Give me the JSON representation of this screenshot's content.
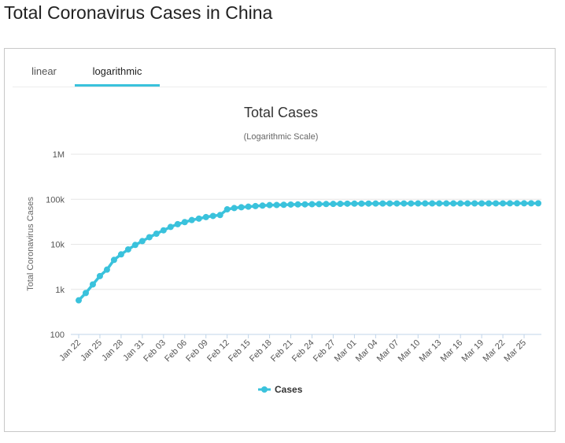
{
  "page": {
    "title": "Total Coronavirus Cases in China"
  },
  "tabs": [
    {
      "label": "linear",
      "active": false
    },
    {
      "label": "logarithmic",
      "active": true
    }
  ],
  "colors": {
    "series": "#3ac2dc",
    "grid": "#e6e6e6",
    "axis": "#c0d4e8",
    "tab_active": "#3ac2dc"
  },
  "chart_data": {
    "type": "line",
    "title": "Total Cases",
    "subtitle": "(Logarithmic Scale)",
    "ylabel": "Total Coronavirus Cases",
    "yscale": "log",
    "ylim": [
      100,
      1000000
    ],
    "ytick_values": [
      100,
      1000,
      10000,
      100000,
      1000000
    ],
    "ytick_labels": [
      "100",
      "1k",
      "10k",
      "100k",
      "1M"
    ],
    "x_tick_labels": [
      "Jan 22",
      "Jan 25",
      "Jan 28",
      "Jan 31",
      "Feb 03",
      "Feb 06",
      "Feb 09",
      "Feb 12",
      "Feb 15",
      "Feb 18",
      "Feb 21",
      "Feb 24",
      "Feb 27",
      "Mar 01",
      "Mar 04",
      "Mar 07",
      "Mar 10",
      "Mar 13",
      "Mar 16",
      "Mar 19",
      "Mar 22",
      "Mar 25"
    ],
    "legend": "bottom-center",
    "grid": true,
    "series": [
      {
        "name": "Cases",
        "x": [
          "Jan 22",
          "Jan 23",
          "Jan 24",
          "Jan 25",
          "Jan 26",
          "Jan 27",
          "Jan 28",
          "Jan 29",
          "Jan 30",
          "Jan 31",
          "Feb 01",
          "Feb 02",
          "Feb 03",
          "Feb 04",
          "Feb 05",
          "Feb 06",
          "Feb 07",
          "Feb 08",
          "Feb 09",
          "Feb 10",
          "Feb 11",
          "Feb 12",
          "Feb 13",
          "Feb 14",
          "Feb 15",
          "Feb 16",
          "Feb 17",
          "Feb 18",
          "Feb 19",
          "Feb 20",
          "Feb 21",
          "Feb 22",
          "Feb 23",
          "Feb 24",
          "Feb 25",
          "Feb 26",
          "Feb 27",
          "Feb 28",
          "Feb 29",
          "Mar 01",
          "Mar 02",
          "Mar 03",
          "Mar 04",
          "Mar 05",
          "Mar 06",
          "Mar 07",
          "Mar 08",
          "Mar 09",
          "Mar 10",
          "Mar 11",
          "Mar 12",
          "Mar 13",
          "Mar 14",
          "Mar 15",
          "Mar 16",
          "Mar 17",
          "Mar 18",
          "Mar 19",
          "Mar 20",
          "Mar 21",
          "Mar 22",
          "Mar 23",
          "Mar 24",
          "Mar 25",
          "Mar 26",
          "Mar 27"
        ],
        "values": [
          571,
          830,
          1287,
          1975,
          2744,
          4515,
          5974,
          7711,
          9692,
          11791,
          14380,
          17205,
          20438,
          24324,
          28018,
          31161,
          34546,
          37198,
          40171,
          42638,
          44653,
          59804,
          63851,
          66492,
          68500,
          70548,
          72436,
          74185,
          74576,
          75465,
          76288,
          76936,
          77150,
          77658,
          78064,
          78497,
          78824,
          79251,
          79824,
          80026,
          80151,
          80270,
          80409,
          80552,
          80651,
          80695,
          80735,
          80754,
          80778,
          80793,
          80813,
          80824,
          80844,
          80860,
          80881,
          80894,
          80928,
          80967,
          81008,
          81054,
          81093,
          81171,
          81218,
          81285,
          81340,
          81394
        ]
      }
    ]
  }
}
